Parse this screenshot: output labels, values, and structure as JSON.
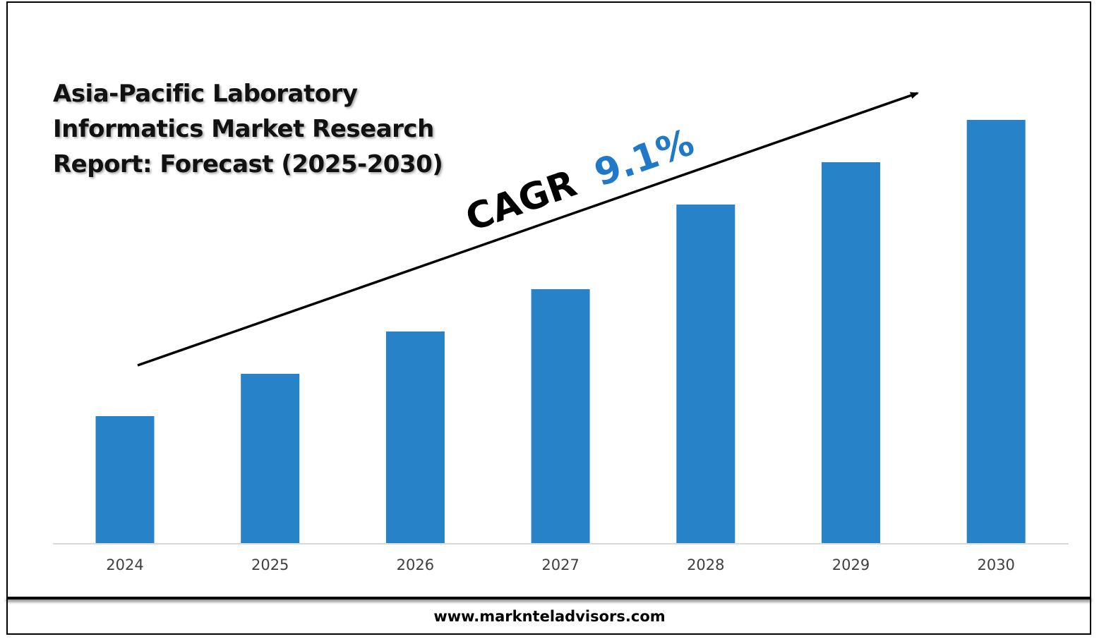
{
  "footer": {
    "website": "www.marknteladvisors.com"
  },
  "colors": {
    "bar": "#2882C8",
    "cagr_value": "#1F78C8",
    "axis": "#D9D9D9",
    "trend_arrow": "#000000"
  },
  "chart_data": {
    "type": "bar",
    "title": "Asia-Pacific Laboratory\nInformatics Market Research\nReport: Forecast (2025-2030)",
    "categories": [
      "2024",
      "2025",
      "2026",
      "2027",
      "2028",
      "2029",
      "2030"
    ],
    "values": [
      30,
      40,
      50,
      60,
      80,
      90,
      100
    ],
    "ylim": [
      0,
      110
    ],
    "grid": false,
    "legend": "none",
    "annotation": {
      "label": "CAGR",
      "value": "9.1%"
    }
  }
}
